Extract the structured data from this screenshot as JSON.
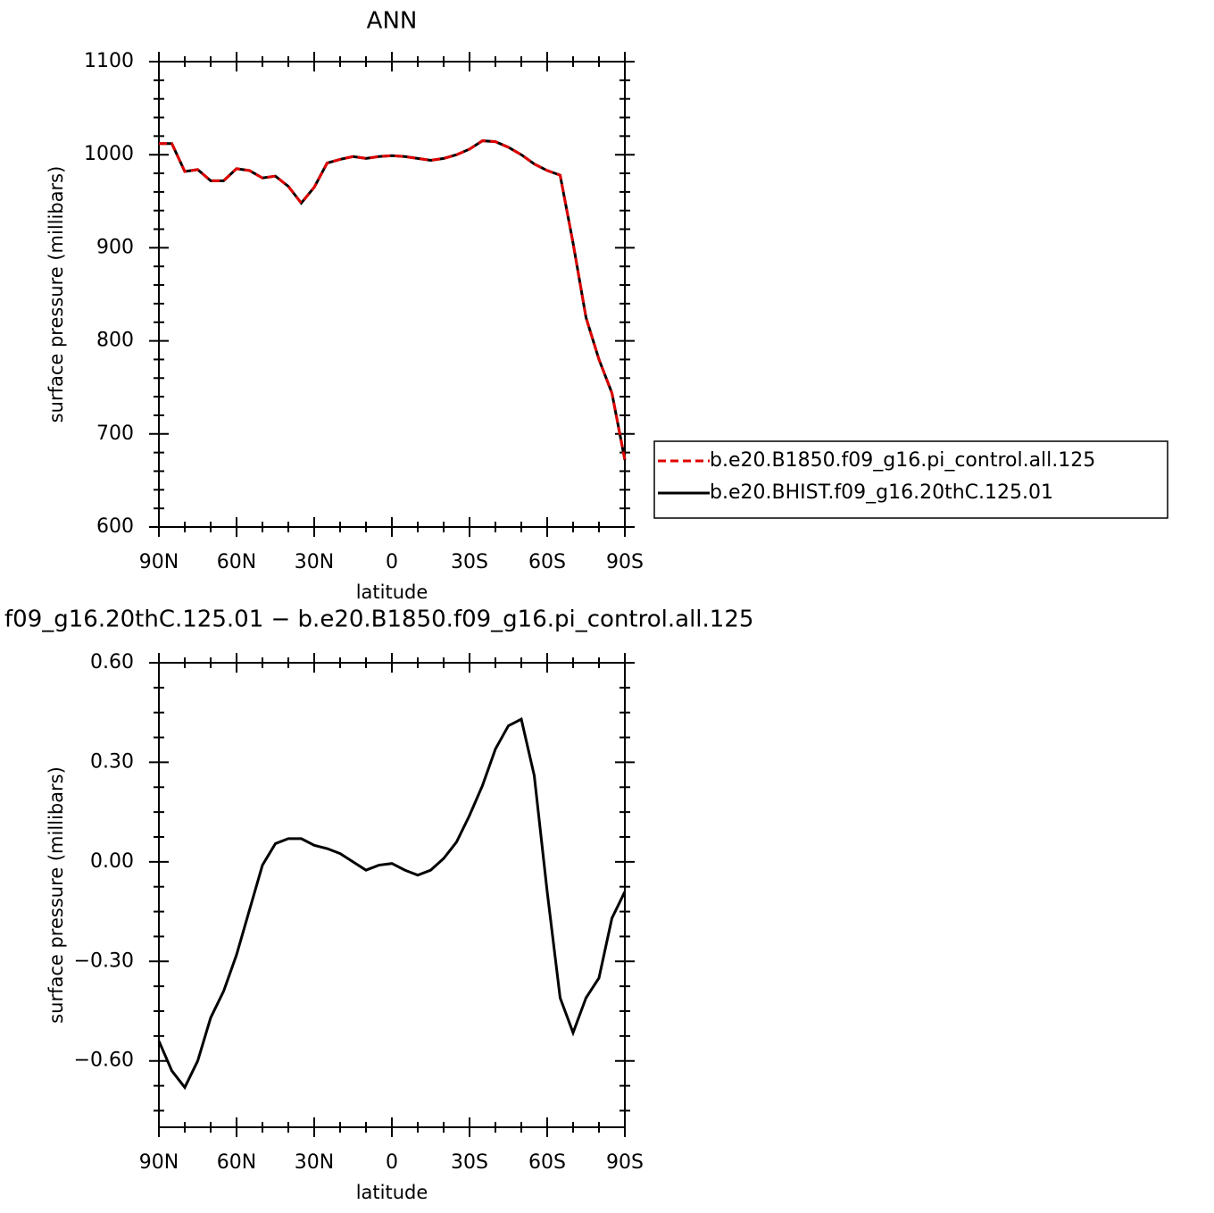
{
  "chart_data": [
    {
      "type": "line",
      "title": "ANN",
      "xlabel": "latitude",
      "ylabel": "surface pressure (millibars)",
      "x": [
        90,
        85,
        80,
        75,
        70,
        65,
        60,
        55,
        50,
        45,
        40,
        35,
        30,
        25,
        20,
        15,
        10,
        5,
        0,
        -5,
        -10,
        -15,
        -20,
        -25,
        -30,
        -35,
        -40,
        -45,
        -50,
        -55,
        -60,
        -65,
        -70,
        -75,
        -80,
        -85,
        -90
      ],
      "series": [
        {
          "name": "b.e20.B1850.f09_g16.pi_control.all.125",
          "color": "#e00000",
          "dash": true,
          "values": [
            1012,
            1012,
            982,
            984,
            972,
            972,
            985,
            983,
            975,
            977,
            966,
            948,
            965,
            991,
            995,
            998,
            996,
            998,
            999,
            998,
            996,
            994,
            996,
            1000,
            1006,
            1015,
            1014,
            1008,
            1000,
            990,
            983,
            978,
            905,
            825,
            780,
            744,
            672
          ]
        },
        {
          "name": "b.e20.BHIST.f09_g16.20thC.125.01",
          "color": "#000000",
          "dash": false,
          "values": [
            1012,
            1012,
            982,
            984,
            972,
            972,
            985,
            983,
            975,
            977,
            966,
            948,
            965,
            991,
            995,
            998,
            996,
            998,
            999,
            998,
            996,
            994,
            996,
            1000,
            1006,
            1015,
            1014,
            1008,
            1000,
            990,
            983,
            978,
            905,
            825,
            780,
            744,
            672
          ]
        }
      ],
      "xlim": [
        90,
        -90
      ],
      "xticks": [
        {
          "value": 90,
          "label": "90N"
        },
        {
          "value": 60,
          "label": "60N"
        },
        {
          "value": 30,
          "label": "30N"
        },
        0,
        {
          "value": -30,
          "label": "30S"
        },
        {
          "value": -60,
          "label": "60S"
        },
        {
          "value": -90,
          "label": "90S"
        }
      ],
      "xminorticks": [
        80,
        70,
        50,
        40,
        20,
        10,
        -10,
        -20,
        -40,
        -50,
        -70,
        -80
      ],
      "ylim": [
        600,
        1100
      ],
      "yticks": [
        600,
        700,
        800,
        900,
        1000,
        1100
      ],
      "yminorticks": [
        620,
        640,
        660,
        680,
        720,
        740,
        760,
        780,
        820,
        840,
        860,
        880,
        920,
        940,
        960,
        980,
        1020,
        1040,
        1060,
        1080
      ],
      "legend": "right"
    },
    {
      "type": "line",
      "title": "f09_g16.20thC.125.01 − b.e20.B1850.f09_g16.pi_control.all.125",
      "xlabel": "latitude",
      "ylabel": "surface pressure (millibars)",
      "x": [
        90,
        85,
        80,
        75,
        70,
        65,
        60,
        55,
        50,
        45,
        40,
        35,
        30,
        25,
        20,
        15,
        10,
        5,
        0,
        -5,
        -10,
        -15,
        -20,
        -25,
        -30,
        -35,
        -40,
        -45,
        -50,
        -55,
        -60,
        -65,
        -70,
        -75,
        -80,
        -85,
        -90
      ],
      "series": [
        {
          "color": "#000000",
          "dash": false,
          "values": [
            -0.54,
            -0.63,
            -0.68,
            -0.6,
            -0.47,
            -0.39,
            -0.28,
            -0.145,
            -0.01,
            0.055,
            0.07,
            0.07,
            0.05,
            0.04,
            0.025,
            0.0,
            -0.025,
            -0.01,
            -0.005,
            -0.025,
            -0.04,
            -0.025,
            0.01,
            0.06,
            0.14,
            0.23,
            0.34,
            0.41,
            0.43,
            0.26,
            -0.09,
            -0.41,
            -0.515,
            -0.41,
            -0.35,
            -0.17,
            -0.09
          ]
        }
      ],
      "xlim": [
        90,
        -90
      ],
      "xticks": [
        {
          "value": 90,
          "label": "90N"
        },
        {
          "value": 60,
          "label": "60N"
        },
        {
          "value": 30,
          "label": "30N"
        },
        0,
        {
          "value": -30,
          "label": "30S"
        },
        {
          "value": -60,
          "label": "60S"
        },
        {
          "value": -90,
          "label": "90S"
        }
      ],
      "xminorticks": [
        80,
        70,
        50,
        40,
        20,
        10,
        -10,
        -20,
        -40,
        -50,
        -70,
        -80
      ],
      "ylim": [
        -0.8,
        0.6
      ],
      "yticks": [
        {
          "value": -0.6,
          "label": "−0.60"
        },
        {
          "value": -0.3,
          "label": "−0.30"
        },
        {
          "value": 0,
          "label": "0.00"
        },
        {
          "value": 0.3,
          "label": "0.30"
        },
        {
          "value": 0.6,
          "label": "0.60"
        }
      ],
      "yminorticks": [
        -0.75,
        -0.675,
        -0.525,
        -0.45,
        -0.375,
        -0.225,
        -0.15,
        -0.075,
        0.075,
        0.15,
        0.225,
        0.375,
        0.45,
        0.525
      ]
    }
  ]
}
